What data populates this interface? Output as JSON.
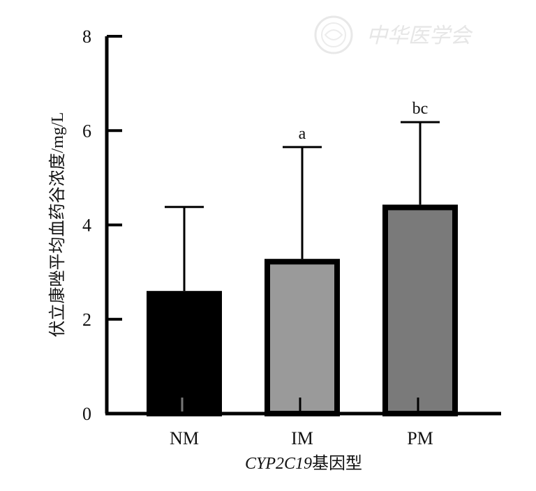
{
  "chart_data": {
    "type": "bar",
    "categories": [
      "NM",
      "IM",
      "PM"
    ],
    "values": [
      2.6,
      3.28,
      4.43
    ],
    "error_upper": [
      4.38,
      5.65,
      6.18
    ],
    "significance": [
      "",
      "a",
      "bc"
    ],
    "bar_colors": [
      "#000000",
      "#9a9a9a",
      "#7a7a7a"
    ],
    "ylabel": "伏立康唑平均血药谷浓度/mg/L",
    "xlabel_italic": "CYP2C19",
    "xlabel_suffix": "基因型",
    "ylim": [
      0,
      8
    ],
    "yticks": [
      0,
      2,
      4,
      6,
      8
    ],
    "ytick_labels": [
      "0",
      "2",
      "4",
      "6",
      "8"
    ],
    "grid": false,
    "legend": "none"
  },
  "watermark": {
    "text": "中华医学会",
    "icon": "medical-association-seal"
  }
}
